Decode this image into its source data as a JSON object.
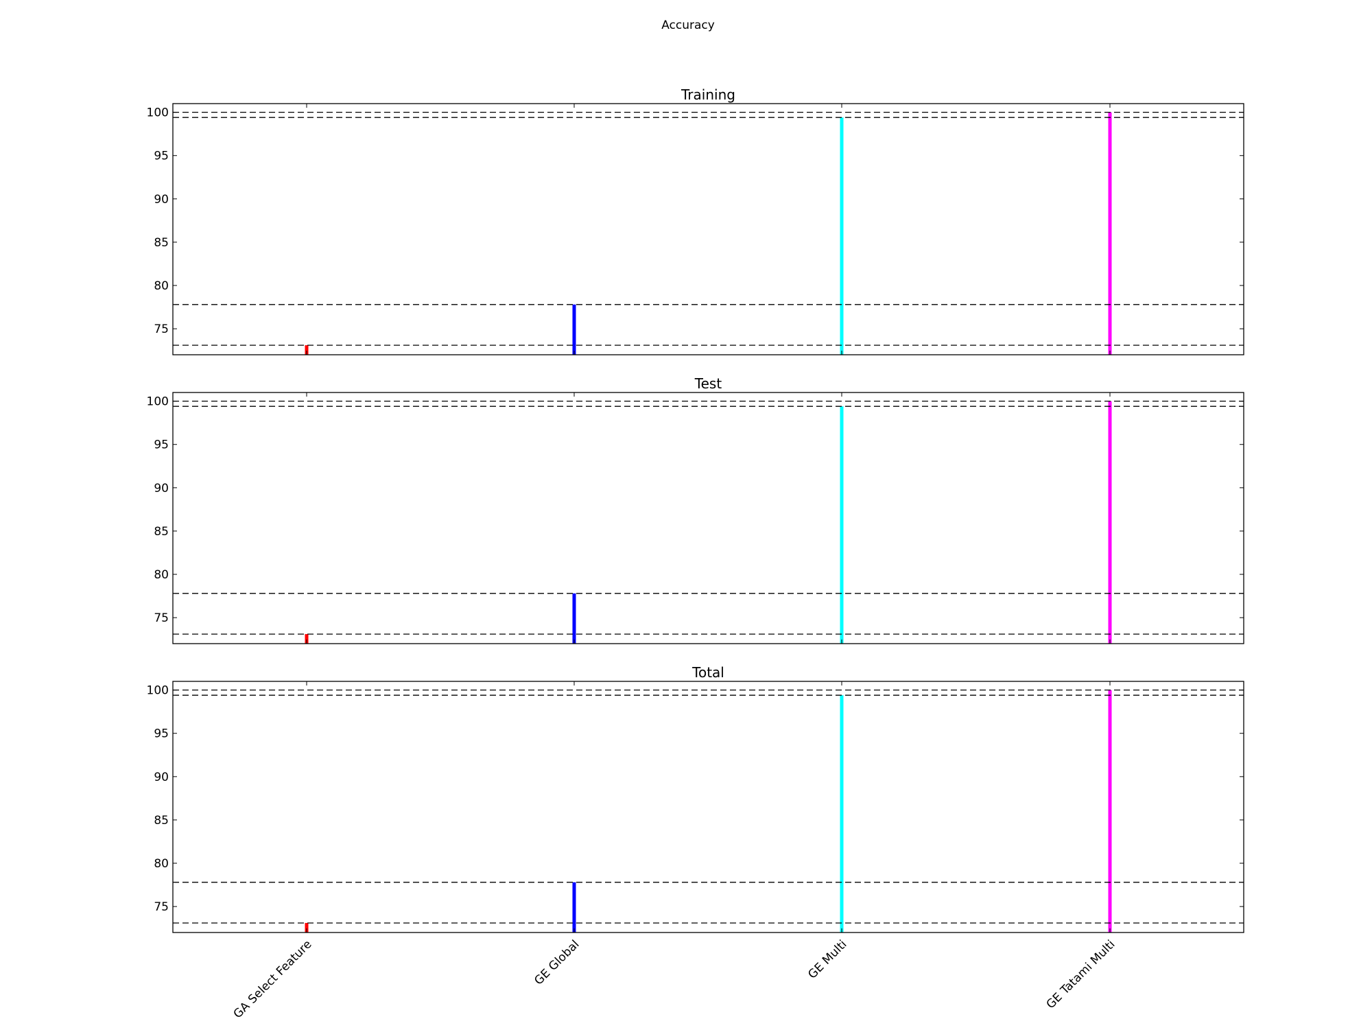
{
  "figure": {
    "suptitle": "Accuracy"
  },
  "chart_data": [
    {
      "type": "bar",
      "title": "Training",
      "xlabel": "",
      "ylabel": "",
      "categories": [
        "GA Select Feature",
        "GE Global",
        "GE Multi",
        "GE Tatami Multi"
      ],
      "values": [
        73.1,
        77.8,
        99.4,
        100.0
      ],
      "colors": [
        "#ff0000",
        "#0000ff",
        "#00ffff",
        "#ff00ff"
      ],
      "reference_lines": [
        73.1,
        77.8,
        99.4,
        100.0
      ],
      "ylim": [
        72.0,
        101.0
      ],
      "yticks": [
        75,
        80,
        85,
        90,
        95,
        100
      ],
      "grid": false,
      "legend": "none"
    },
    {
      "type": "bar",
      "title": "Test",
      "xlabel": "",
      "ylabel": "",
      "categories": [
        "GA Select Feature",
        "GE Global",
        "GE Multi",
        "GE Tatami Multi"
      ],
      "values": [
        73.1,
        77.8,
        99.4,
        100.0
      ],
      "colors": [
        "#ff0000",
        "#0000ff",
        "#00ffff",
        "#ff00ff"
      ],
      "reference_lines": [
        73.1,
        77.8,
        99.4,
        100.0
      ],
      "ylim": [
        72.0,
        101.0
      ],
      "yticks": [
        75,
        80,
        85,
        90,
        95,
        100
      ],
      "grid": false,
      "legend": "none"
    },
    {
      "type": "bar",
      "title": "Total",
      "xlabel": "",
      "ylabel": "",
      "categories": [
        "GA Select Feature",
        "GE Global",
        "GE Multi",
        "GE Tatami Multi"
      ],
      "values": [
        73.1,
        77.8,
        99.4,
        100.0
      ],
      "colors": [
        "#ff0000",
        "#0000ff",
        "#00ffff",
        "#ff00ff"
      ],
      "reference_lines": [
        73.1,
        77.8,
        99.4,
        100.0
      ],
      "ylim": [
        72.0,
        101.0
      ],
      "yticks": [
        75,
        80,
        85,
        90,
        95,
        100
      ],
      "grid": false,
      "legend": "none"
    }
  ]
}
